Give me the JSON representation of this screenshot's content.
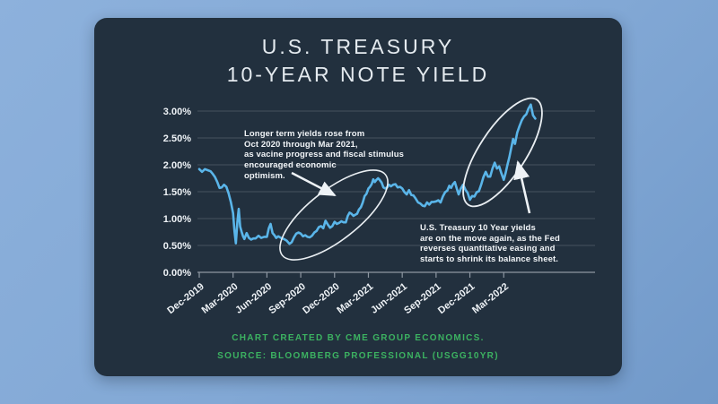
{
  "colors": {
    "page_background": "#82a8d5",
    "card_background": "#22303e",
    "line": "#5ab5e9",
    "grid": "#46525f",
    "axis": "#8e97a2",
    "text": "#eef2f6",
    "footer_green": "#3cb261"
  },
  "header": {
    "title_line1": "U.S. TREASURY",
    "title_line2": "10-YEAR NOTE YIELD"
  },
  "chart_data": {
    "type": "line",
    "title": "U.S. Treasury 10-Year Note Yield",
    "xlabel": "",
    "ylabel": "",
    "grid": true,
    "ylim": [
      0,
      3.0
    ],
    "x_range_months_from_dec2019": [
      0,
      29.8
    ],
    "y_tick_labels": [
      "3.00%",
      "2.50%",
      "2.00%",
      "1.50%",
      "1.00%",
      "0.50%",
      "0.00%"
    ],
    "y_tick_values": [
      3,
      2.5,
      2,
      1.5,
      1,
      0.5,
      0
    ],
    "x_tick_labels": [
      "Dec-2019",
      "Mar-2020",
      "Jun-2020",
      "Sep-2020",
      "Dec-2020",
      "Mar-2021",
      "Jun-2021",
      "Sep-2021",
      "Dec-2021",
      "Mar-2022"
    ],
    "x_tick_months": [
      0,
      3,
      6,
      9,
      12,
      15,
      18,
      21,
      24,
      27
    ],
    "series_name": "U.S. Treasury 10-year note yield (%)",
    "points": [
      [
        0,
        1.92
      ],
      [
        0.25,
        1.87
      ],
      [
        0.5,
        1.92
      ],
      [
        0.75,
        1.9
      ],
      [
        1,
        1.88
      ],
      [
        1.2,
        1.83
      ],
      [
        1.4,
        1.77
      ],
      [
        1.6,
        1.68
      ],
      [
        1.8,
        1.57
      ],
      [
        2,
        1.58
      ],
      [
        2.2,
        1.63
      ],
      [
        2.4,
        1.59
      ],
      [
        2.6,
        1.47
      ],
      [
        2.8,
        1.31
      ],
      [
        3,
        1.1
      ],
      [
        3.13,
        0.76
      ],
      [
        3.25,
        0.54
      ],
      [
        3.38,
        0.94
      ],
      [
        3.5,
        1.18
      ],
      [
        3.63,
        0.85
      ],
      [
        3.75,
        0.76
      ],
      [
        3.88,
        0.67
      ],
      [
        4,
        0.62
      ],
      [
        4.2,
        0.73
      ],
      [
        4.4,
        0.64
      ],
      [
        4.6,
        0.61
      ],
      [
        4.8,
        0.63
      ],
      [
        5,
        0.63
      ],
      [
        5.25,
        0.68
      ],
      [
        5.5,
        0.64
      ],
      [
        5.75,
        0.66
      ],
      [
        6,
        0.66
      ],
      [
        6.17,
        0.82
      ],
      [
        6.33,
        0.9
      ],
      [
        6.5,
        0.73
      ],
      [
        6.67,
        0.69
      ],
      [
        6.83,
        0.64
      ],
      [
        7,
        0.67
      ],
      [
        7.25,
        0.64
      ],
      [
        7.5,
        0.62
      ],
      [
        7.75,
        0.59
      ],
      [
        8,
        0.53
      ],
      [
        8.2,
        0.56
      ],
      [
        8.4,
        0.65
      ],
      [
        8.6,
        0.72
      ],
      [
        8.8,
        0.74
      ],
      [
        9,
        0.72
      ],
      [
        9.2,
        0.67
      ],
      [
        9.4,
        0.69
      ],
      [
        9.6,
        0.66
      ],
      [
        9.8,
        0.65
      ],
      [
        10,
        0.68
      ],
      [
        10.2,
        0.74
      ],
      [
        10.4,
        0.77
      ],
      [
        10.6,
        0.84
      ],
      [
        10.8,
        0.86
      ],
      [
        11,
        0.82
      ],
      [
        11.2,
        0.96
      ],
      [
        11.4,
        0.89
      ],
      [
        11.6,
        0.83
      ],
      [
        11.8,
        0.86
      ],
      [
        12,
        0.94
      ],
      [
        12.2,
        0.9
      ],
      [
        12.4,
        0.92
      ],
      [
        12.6,
        0.95
      ],
      [
        12.8,
        0.93
      ],
      [
        13,
        0.93
      ],
      [
        13.17,
        1.05
      ],
      [
        13.33,
        1.11
      ],
      [
        13.5,
        1.09
      ],
      [
        13.67,
        1.05
      ],
      [
        13.83,
        1.07
      ],
      [
        14,
        1.09
      ],
      [
        14.17,
        1.17
      ],
      [
        14.33,
        1.21
      ],
      [
        14.5,
        1.3
      ],
      [
        14.67,
        1.42
      ],
      [
        14.83,
        1.46
      ],
      [
        15,
        1.56
      ],
      [
        15.14,
        1.59
      ],
      [
        15.29,
        1.64
      ],
      [
        15.43,
        1.73
      ],
      [
        15.57,
        1.68
      ],
      [
        15.71,
        1.72
      ],
      [
        15.86,
        1.75
      ],
      [
        16,
        1.72
      ],
      [
        16.17,
        1.67
      ],
      [
        16.33,
        1.58
      ],
      [
        16.5,
        1.56
      ],
      [
        16.67,
        1.58
      ],
      [
        16.83,
        1.63
      ],
      [
        17,
        1.6
      ],
      [
        17.2,
        1.63
      ],
      [
        17.4,
        1.64
      ],
      [
        17.6,
        1.58
      ],
      [
        17.8,
        1.59
      ],
      [
        18,
        1.56
      ],
      [
        18.2,
        1.49
      ],
      [
        18.4,
        1.45
      ],
      [
        18.6,
        1.53
      ],
      [
        18.8,
        1.44
      ],
      [
        19,
        1.43
      ],
      [
        19.2,
        1.37
      ],
      [
        19.4,
        1.3
      ],
      [
        19.6,
        1.28
      ],
      [
        19.8,
        1.24
      ],
      [
        20,
        1.23
      ],
      [
        20.2,
        1.3
      ],
      [
        20.4,
        1.26
      ],
      [
        20.6,
        1.31
      ],
      [
        20.8,
        1.31
      ],
      [
        21,
        1.32
      ],
      [
        21.2,
        1.34
      ],
      [
        21.4,
        1.3
      ],
      [
        21.6,
        1.41
      ],
      [
        21.8,
        1.49
      ],
      [
        22,
        1.52
      ],
      [
        22.17,
        1.61
      ],
      [
        22.33,
        1.57
      ],
      [
        22.5,
        1.64
      ],
      [
        22.67,
        1.68
      ],
      [
        22.83,
        1.56
      ],
      [
        23,
        1.45
      ],
      [
        23.2,
        1.56
      ],
      [
        23.4,
        1.63
      ],
      [
        23.6,
        1.54
      ],
      [
        23.8,
        1.48
      ],
      [
        24,
        1.35
      ],
      [
        24.2,
        1.42
      ],
      [
        24.4,
        1.41
      ],
      [
        24.6,
        1.49
      ],
      [
        24.8,
        1.51
      ],
      [
        25,
        1.63
      ],
      [
        25.2,
        1.77
      ],
      [
        25.4,
        1.87
      ],
      [
        25.6,
        1.78
      ],
      [
        25.8,
        1.78
      ],
      [
        26,
        1.93
      ],
      [
        26.2,
        2.04
      ],
      [
        26.4,
        1.93
      ],
      [
        26.6,
        1.97
      ],
      [
        26.8,
        1.84
      ],
      [
        27,
        1.72
      ],
      [
        27.17,
        1.85
      ],
      [
        27.33,
        2
      ],
      [
        27.5,
        2.14
      ],
      [
        27.67,
        2.32
      ],
      [
        27.83,
        2.48
      ],
      [
        28,
        2.39
      ],
      [
        28.2,
        2.6
      ],
      [
        28.4,
        2.72
      ],
      [
        28.6,
        2.83
      ],
      [
        28.8,
        2.9
      ],
      [
        29,
        2.94
      ],
      [
        29.2,
        3.05
      ],
      [
        29.4,
        3.12
      ],
      [
        29.6,
        2.92
      ],
      [
        29.8,
        2.86
      ]
    ],
    "annotations": [
      {
        "lines": [
          "Longer term yields rose from",
          "Oct 2020 through Mar 2021,",
          "as vacine progress and fiscal stimulus",
          "encouraged economic",
          "optimism."
        ]
      },
      {
        "lines": [
          "U.S. Treasury 10 Year yields",
          "are on the move again, as the Fed",
          "reverses quantitative easing and",
          "starts to shrink its balance sheet."
        ]
      }
    ]
  },
  "footer": {
    "line1": "CHART CREATED BY CME GROUP ECONOMICS.",
    "line2": "SOURCE: BLOOMBERG PROFESSIONAL (USGG10YR)"
  }
}
